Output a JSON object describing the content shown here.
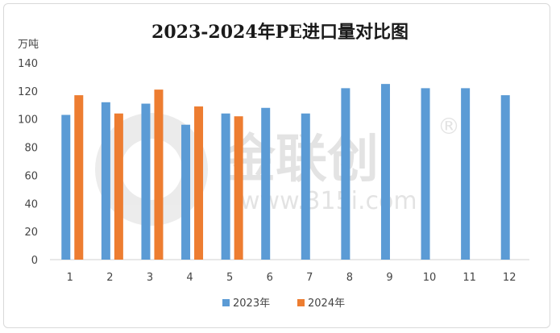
{
  "chart_data": {
    "type": "bar",
    "title": "2023-2024年PE进口量对比图",
    "ylabel": "万吨",
    "xlabel": "",
    "categories": [
      "1",
      "2",
      "3",
      "4",
      "5",
      "6",
      "7",
      "8",
      "9",
      "10",
      "11",
      "12"
    ],
    "ylim": [
      0,
      140
    ],
    "yticks": [
      0,
      20,
      40,
      60,
      80,
      100,
      120,
      140
    ],
    "grid": false,
    "legend_position": "bottom",
    "series": [
      {
        "name": "2023年",
        "color": "#5b9bd5",
        "values": [
          103,
          112,
          111,
          96,
          104,
          108,
          104,
          122,
          125,
          122,
          122,
          117
        ]
      },
      {
        "name": "2024年",
        "color": "#ed7d31",
        "values": [
          117,
          104,
          121,
          109,
          102,
          null,
          null,
          null,
          null,
          null,
          null,
          null
        ]
      }
    ]
  },
  "watermark": {
    "brand": "金联创",
    "url": "www.315i.com",
    "registered_mark": "®"
  }
}
